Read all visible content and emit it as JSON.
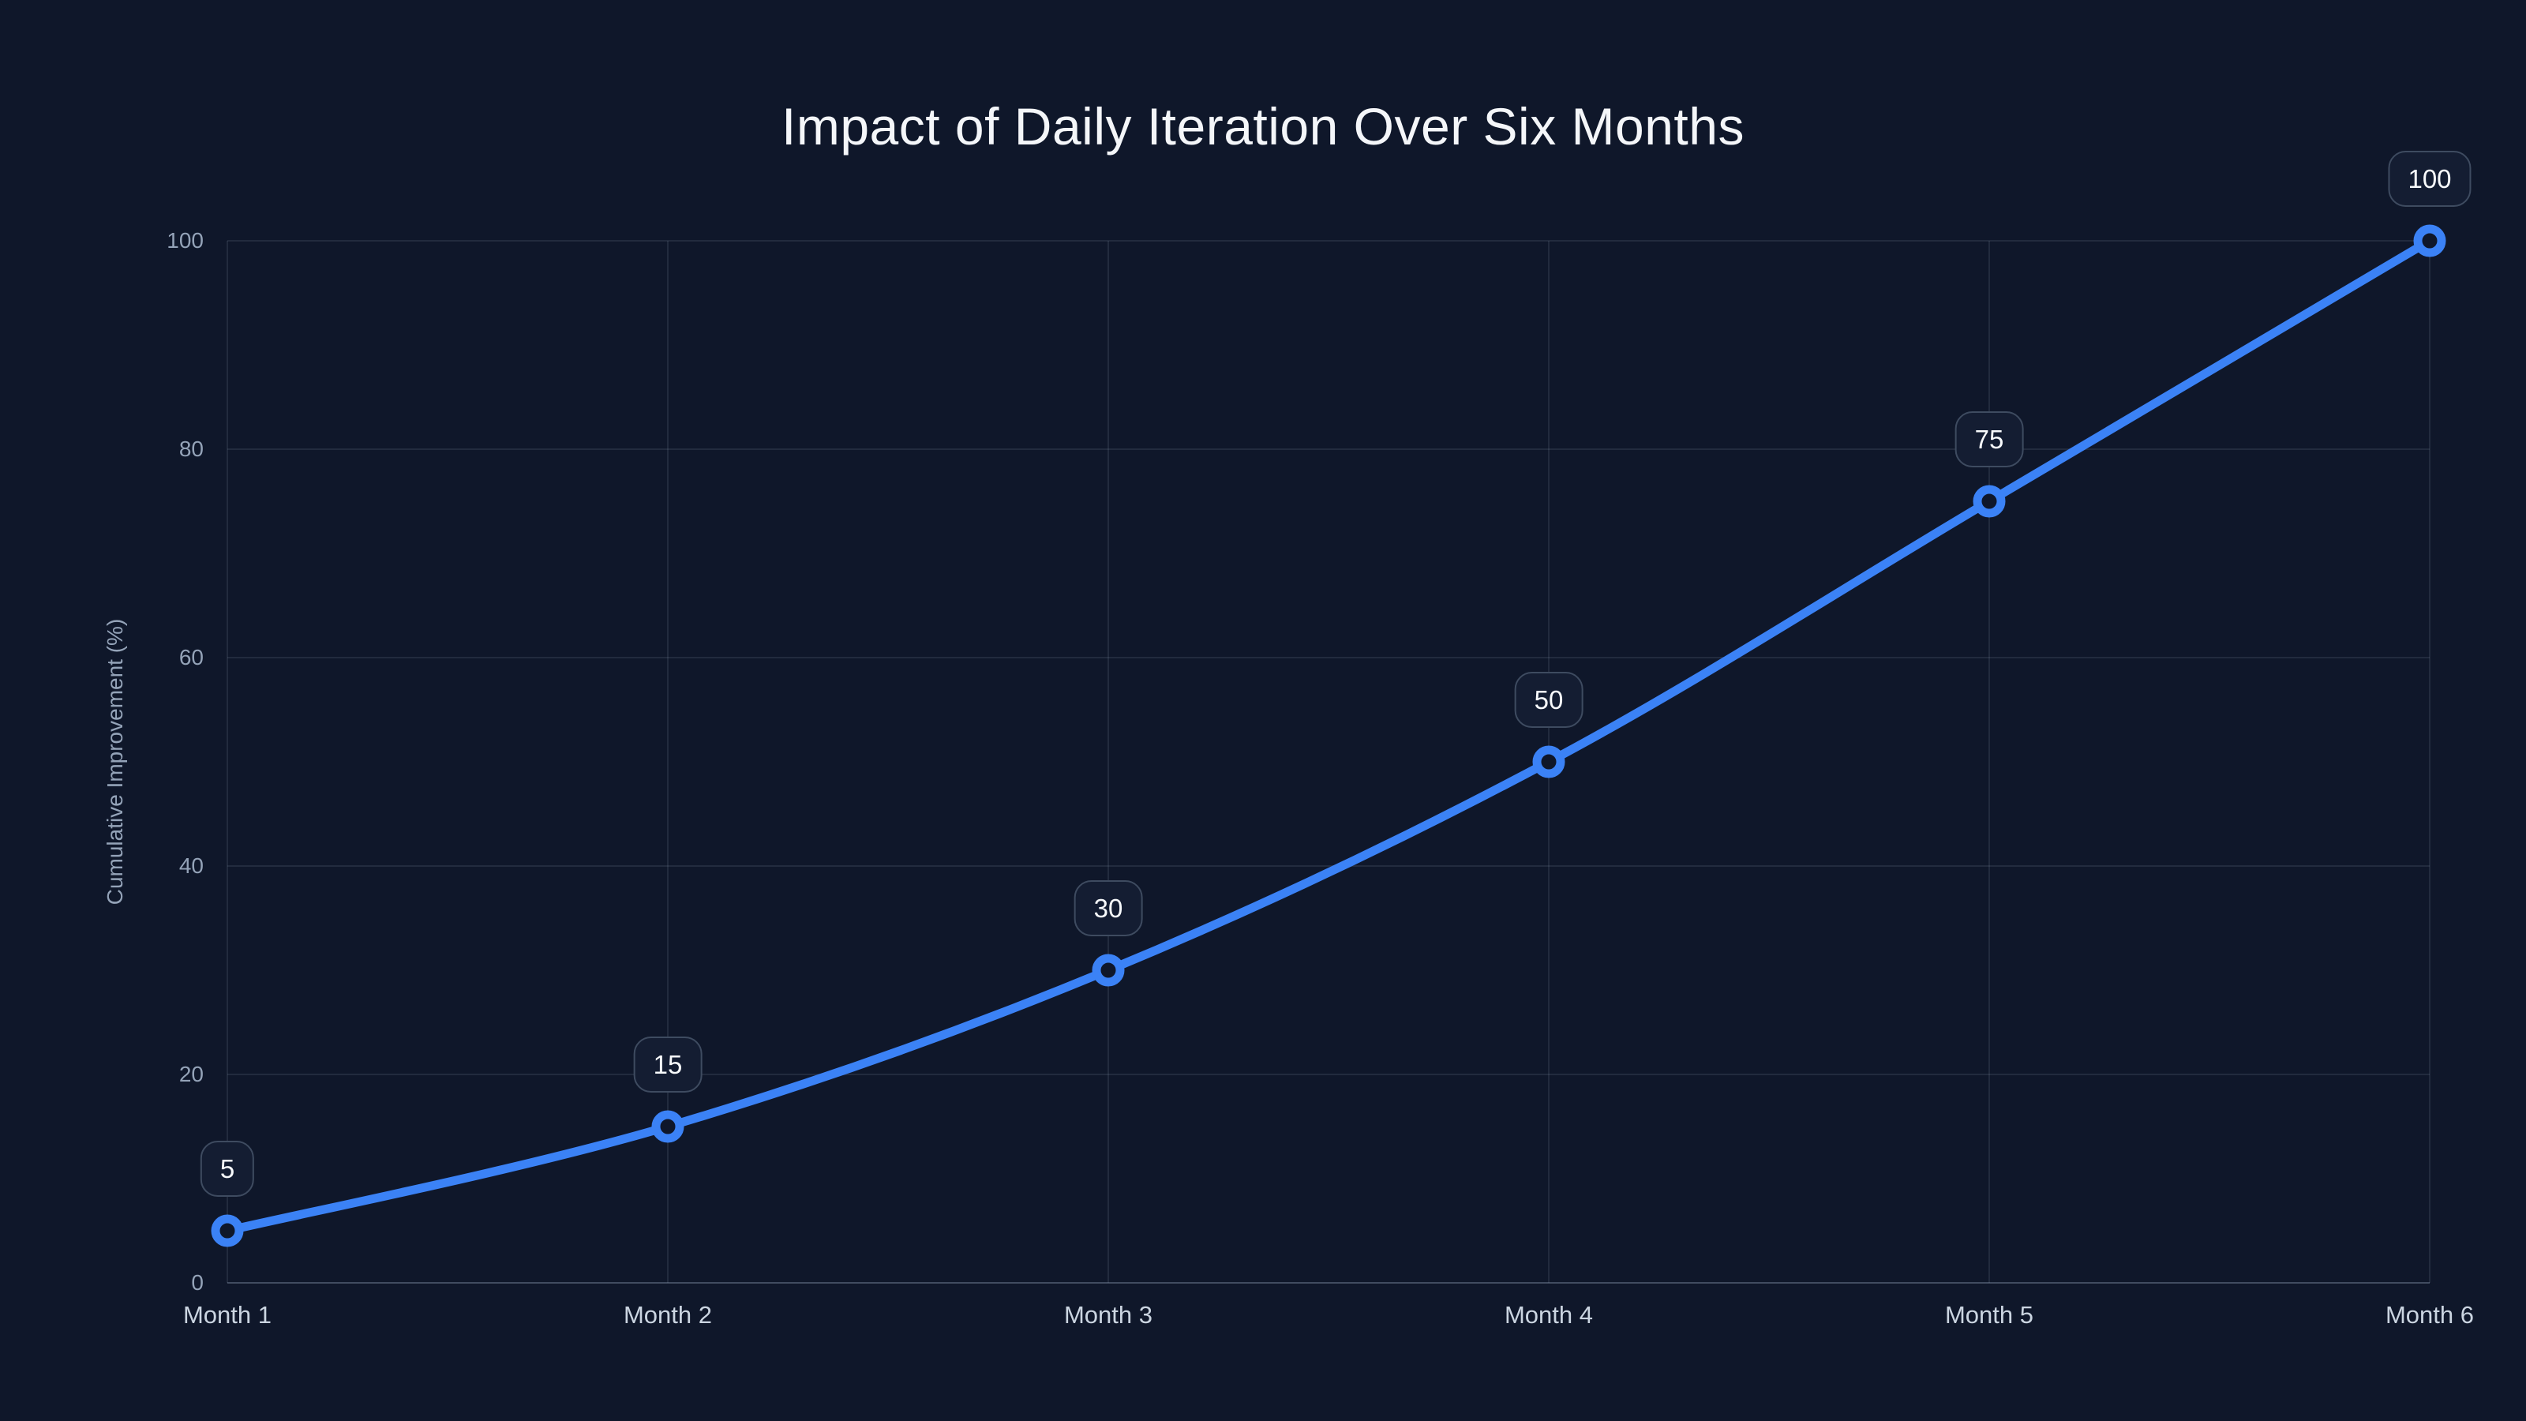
{
  "chart_data": {
    "type": "line",
    "title": "Impact of Daily Iteration Over Six Months",
    "xlabel": "",
    "ylabel": "Cumulative Improvement (%)",
    "categories": [
      "Month 1",
      "Month 2",
      "Month 3",
      "Month 4",
      "Month 5",
      "Month 6"
    ],
    "series": [
      {
        "name": "Cumulative Improvement",
        "values": [
          5,
          15,
          30,
          50,
          75,
          100
        ]
      }
    ],
    "data_labels": [
      "5",
      "15",
      "30",
      "50",
      "75",
      "100"
    ],
    "ylim": [
      0,
      100
    ],
    "yticks": [
      0,
      20,
      40,
      60,
      80,
      100
    ],
    "grid": true,
    "legend": "none",
    "line_smooth": true,
    "colors": {
      "background": "#0f172a",
      "line": "#3b82f6",
      "point_fill": "#0f172a",
      "point_stroke": "#3b82f6",
      "gridline": "rgba(148,163,184,0.15)",
      "axis_line": "rgba(148,163,184,0.38)",
      "title_text": "#f4f6f9",
      "tick_text": "#94a3b8",
      "x_tick_text": "#cbd5e1",
      "badge_bg": "#141d32",
      "badge_border": "#3e4b60",
      "badge_text": "#f8fafc"
    }
  }
}
